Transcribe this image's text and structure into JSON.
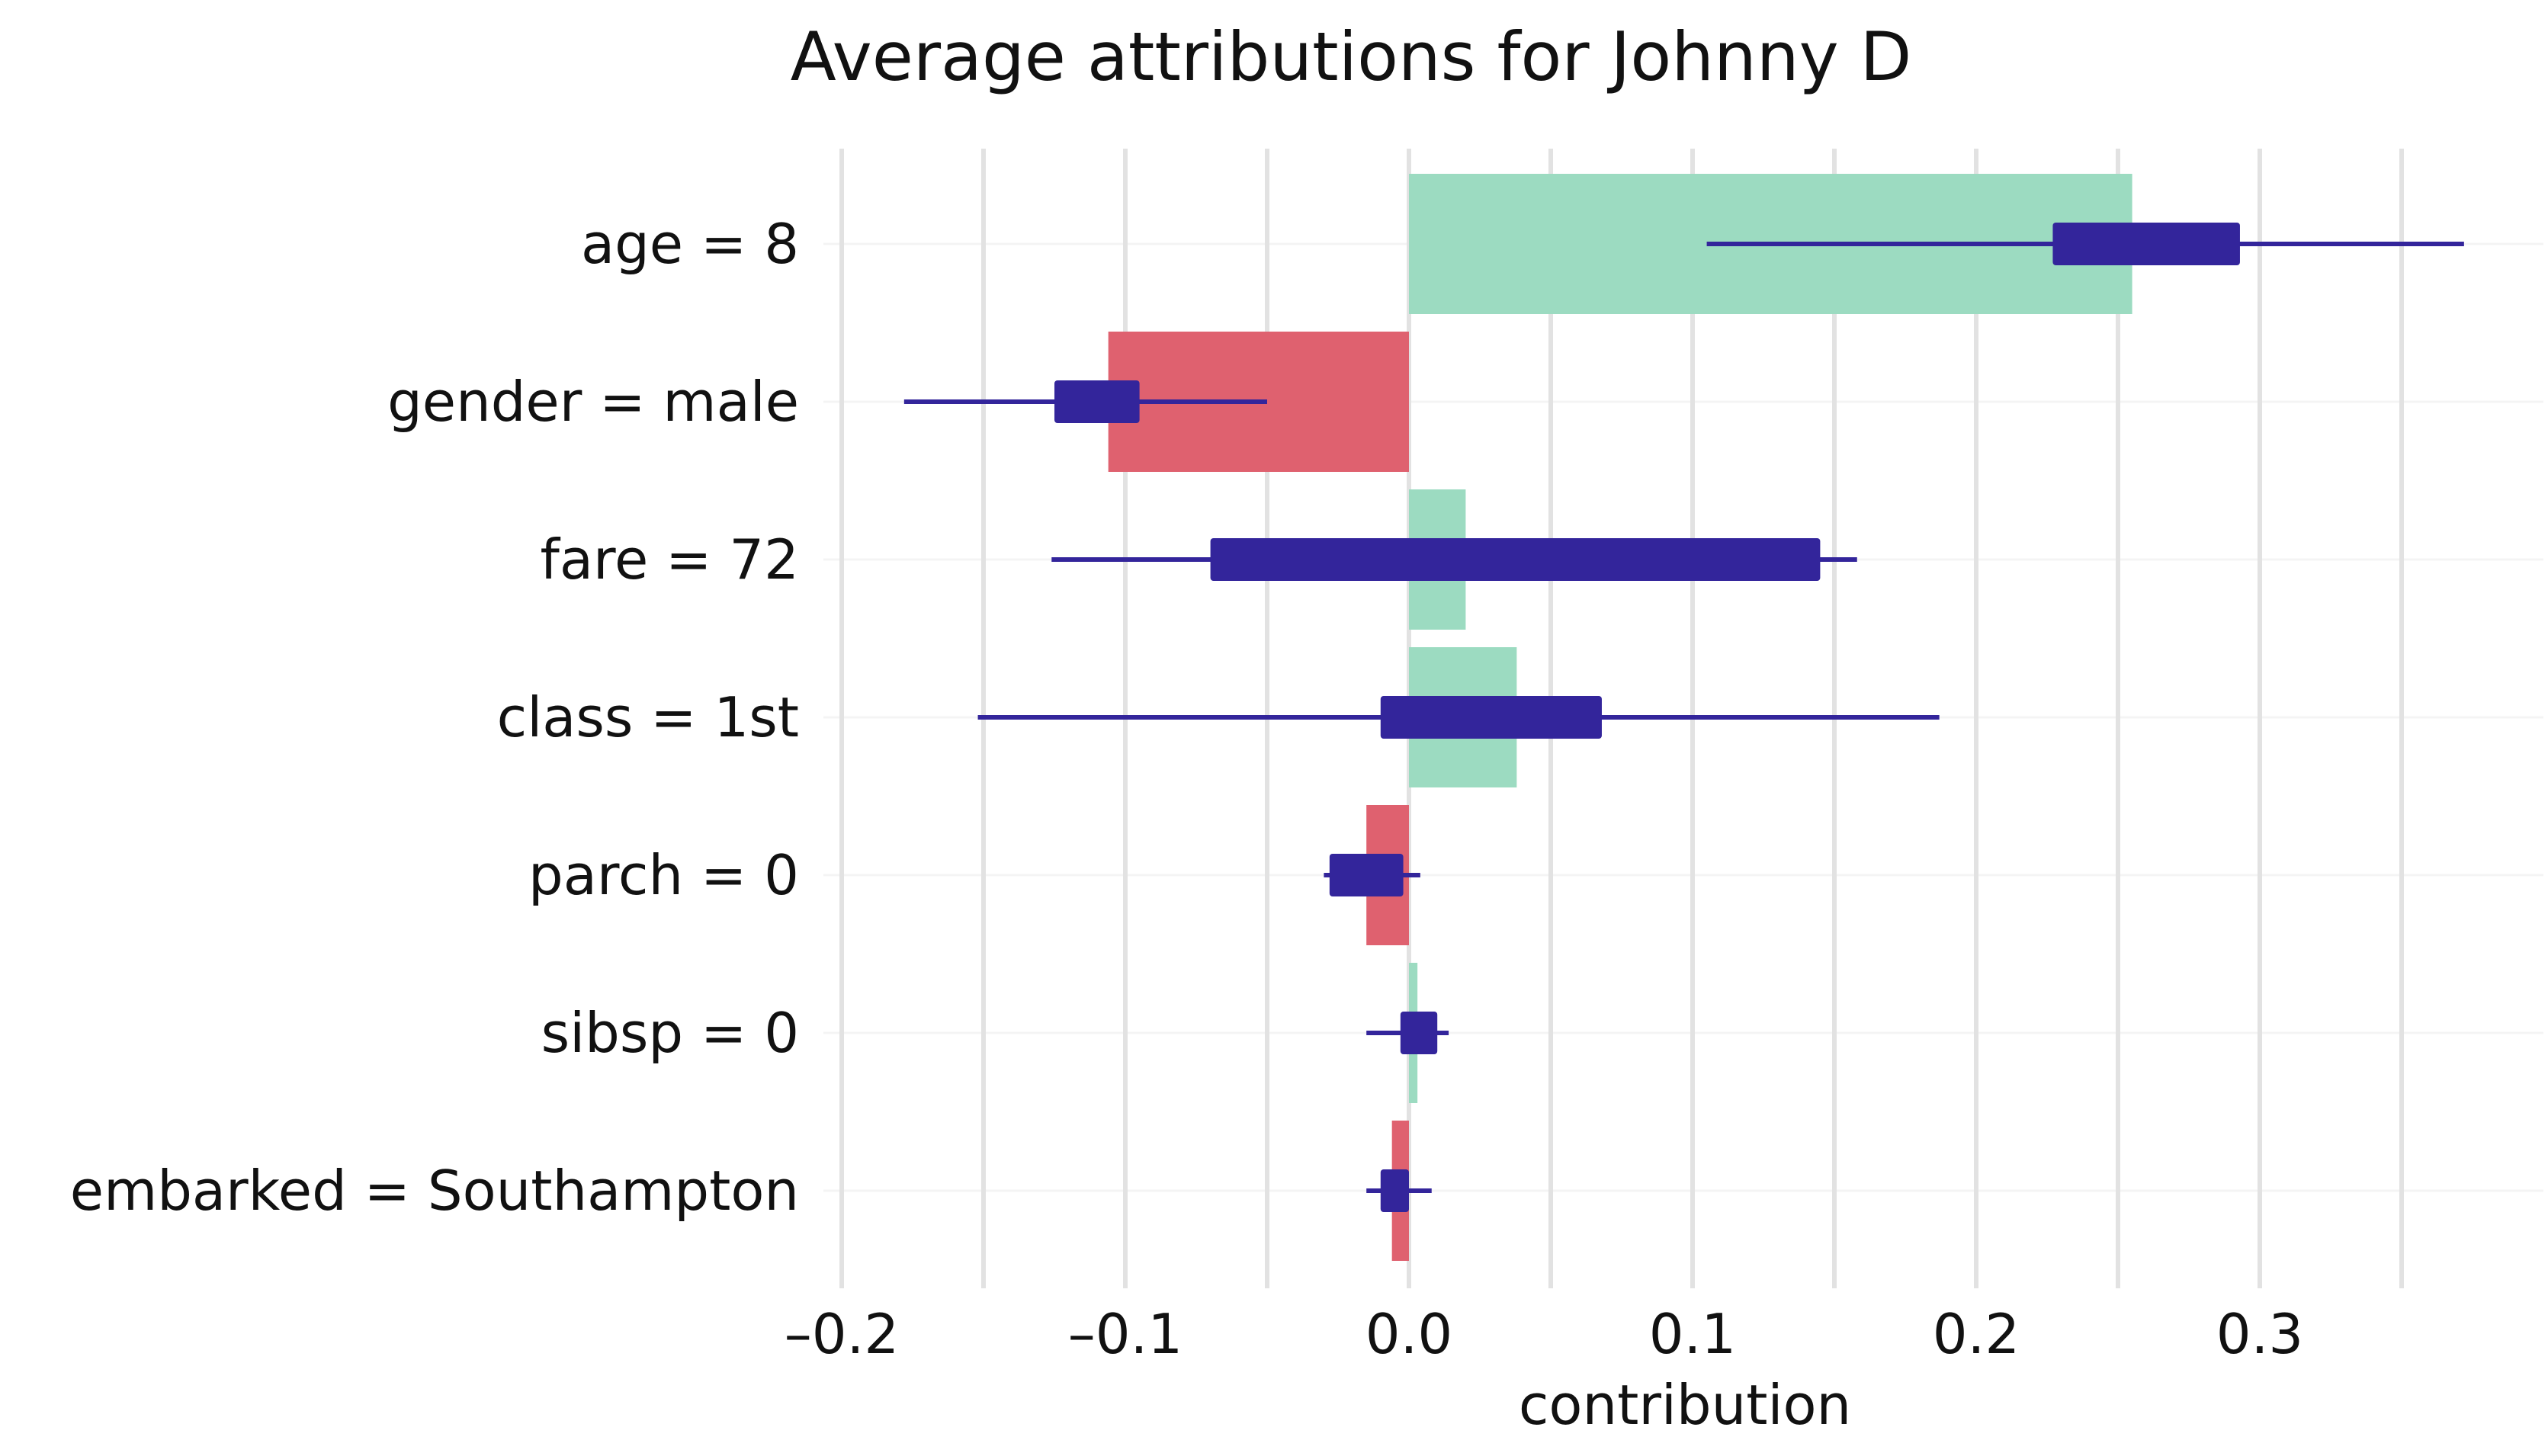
{
  "chart_data": {
    "type": "bar",
    "title": "Average attributions for Johnny D",
    "xlabel": "contribution",
    "ylabel": "",
    "xlim": [
      -0.2,
      0.3
    ],
    "x_ticks": [
      -0.2,
      -0.1,
      0.0,
      0.1,
      0.2,
      0.3
    ],
    "x_tick_labels": [
      "–0.2",
      "–0.1",
      "0.0",
      "0.1",
      "0.2",
      "0.3"
    ],
    "grid": true,
    "orientation": "horizontal",
    "categories": [
      "age = 8",
      "gender = male",
      "fare = 72",
      "class = 1st",
      "parch = 0",
      "sibsp = 0",
      "embarked = Southampton"
    ],
    "values": [
      0.255,
      -0.106,
      0.02,
      0.038,
      -0.015,
      0.003,
      -0.006
    ],
    "boxplot": {
      "whisker_low": [
        0.105,
        -0.178,
        -0.126,
        -0.152,
        -0.03,
        -0.015,
        -0.015
      ],
      "box_low": [
        0.227,
        -0.125,
        -0.07,
        -0.01,
        -0.028,
        -0.003,
        -0.01
      ],
      "box_high": [
        0.293,
        -0.095,
        0.145,
        0.068,
        -0.002,
        0.01,
        0.0
      ],
      "whisker_high": [
        0.372,
        -0.05,
        0.158,
        0.187,
        0.004,
        0.014,
        0.008
      ]
    },
    "colors": {
      "positive": "#9cdbc1",
      "negative": "#df616f",
      "boxplot": "#33259b",
      "grid": "#e2e2e2",
      "minor_grid": "#f4f4f4"
    }
  }
}
